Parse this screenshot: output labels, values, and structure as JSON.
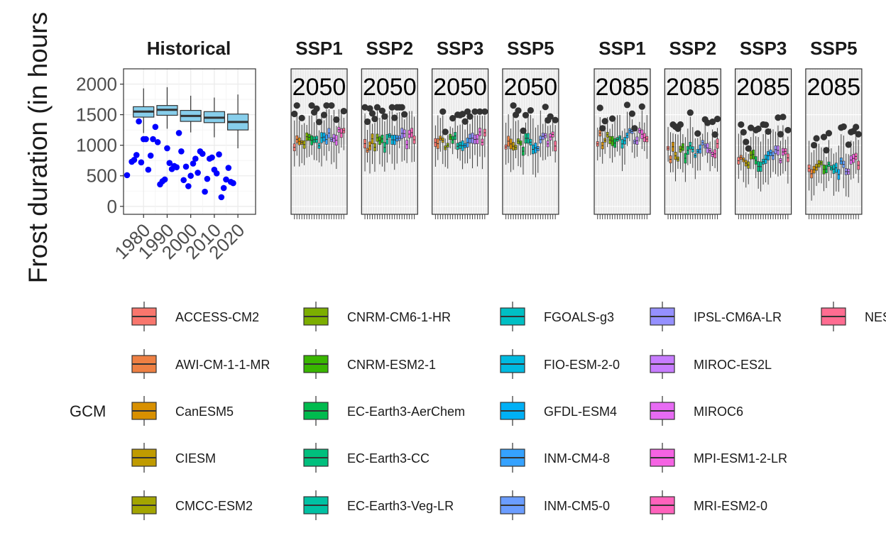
{
  "chart_data": {
    "type": "box",
    "ylabel": "Frost duration (in hours",
    "legend_title": "GCM",
    "legend_placement": "bottom",
    "ylim": [
      -130,
      2250
    ],
    "yticks": [
      0,
      500,
      1000,
      1500,
      2000
    ],
    "historical": {
      "title": "Historical",
      "xticks": [
        "1980",
        "1990",
        "2000",
        "2010",
        "2020"
      ],
      "xlim": [
        1971.5,
        2027.5
      ],
      "box_color": "#87CEEB",
      "point_color": "#0000FF",
      "boxes": [
        {
          "x": 1980,
          "min": 1200,
          "q1": 1460,
          "median": 1550,
          "q3": 1630,
          "max": 1930
        },
        {
          "x": 1990,
          "min": 1270,
          "q1": 1490,
          "median": 1580,
          "q3": 1650,
          "max": 1950
        },
        {
          "x": 2000,
          "min": 1210,
          "q1": 1390,
          "median": 1480,
          "q3": 1570,
          "max": 1810
        },
        {
          "x": 2010,
          "min": 1130,
          "q1": 1370,
          "median": 1450,
          "q3": 1550,
          "max": 1780
        },
        {
          "x": 2020,
          "min": 950,
          "q1": 1250,
          "median": 1380,
          "q3": 1510,
          "max": 1830
        }
      ],
      "points": [
        {
          "x": 1973,
          "y": 510
        },
        {
          "x": 1975,
          "y": 730
        },
        {
          "x": 1976,
          "y": 760
        },
        {
          "x": 1977,
          "y": 840
        },
        {
          "x": 1978,
          "y": 1390
        },
        {
          "x": 1979,
          "y": 720
        },
        {
          "x": 1980,
          "y": 1100
        },
        {
          "x": 1981,
          "y": 1100
        },
        {
          "x": 1982,
          "y": 600
        },
        {
          "x": 1983,
          "y": 830
        },
        {
          "x": 1984,
          "y": 1100
        },
        {
          "x": 1985,
          "y": 1300
        },
        {
          "x": 1986,
          "y": 1050
        },
        {
          "x": 1987,
          "y": 360
        },
        {
          "x": 1988,
          "y": 410
        },
        {
          "x": 1989,
          "y": 440
        },
        {
          "x": 1990,
          "y": 950
        },
        {
          "x": 1991,
          "y": 710
        },
        {
          "x": 1992,
          "y": 610
        },
        {
          "x": 1993,
          "y": 660
        },
        {
          "x": 1994,
          "y": 640
        },
        {
          "x": 1995,
          "y": 1200
        },
        {
          "x": 1996,
          "y": 900
        },
        {
          "x": 1997,
          "y": 430
        },
        {
          "x": 1998,
          "y": 650
        },
        {
          "x": 1999,
          "y": 330
        },
        {
          "x": 2000,
          "y": 500
        },
        {
          "x": 2001,
          "y": 700
        },
        {
          "x": 2002,
          "y": 780
        },
        {
          "x": 2003,
          "y": 550
        },
        {
          "x": 2004,
          "y": 900
        },
        {
          "x": 2005,
          "y": 860
        },
        {
          "x": 2006,
          "y": 240
        },
        {
          "x": 2007,
          "y": 450
        },
        {
          "x": 2008,
          "y": 780
        },
        {
          "x": 2009,
          "y": 800
        },
        {
          "x": 2010,
          "y": 600
        },
        {
          "x": 2011,
          "y": 540
        },
        {
          "x": 2012,
          "y": 850
        },
        {
          "x": 2013,
          "y": 150
        },
        {
          "x": 2014,
          "y": 300
        },
        {
          "x": 2015,
          "y": 440
        },
        {
          "x": 2016,
          "y": 630
        },
        {
          "x": 2017,
          "y": 400
        },
        {
          "x": 2018,
          "y": 380
        }
      ]
    },
    "future_groups": [
      {
        "label": "2050",
        "panels": [
          {
            "title": "SSP1",
            "level": 1100,
            "spread": 160,
            "outlier_max": 1650
          },
          {
            "title": "SSP2",
            "level": 1070,
            "spread": 150,
            "outlier_max": 1620
          },
          {
            "title": "SSP3",
            "level": 1080,
            "spread": 150,
            "outlier_max": 1550
          },
          {
            "title": "SSP5",
            "level": 1020,
            "spread": 170,
            "outlier_max": 1650
          }
        ]
      },
      {
        "label": "2085",
        "panels": [
          {
            "title": "SSP1",
            "level": 1140,
            "spread": 170,
            "outlier_max": 1660
          },
          {
            "title": "SSP2",
            "level": 920,
            "spread": 170,
            "outlier_max": 1620
          },
          {
            "title": "SSP3",
            "level": 780,
            "spread": 190,
            "outlier_max": 1530
          },
          {
            "title": "SSP5",
            "level": 640,
            "spread": 200,
            "outlier_max": 1420
          }
        ]
      }
    ],
    "legend": [
      {
        "name": "ACCESS-CM2",
        "color": "#F8766D"
      },
      {
        "name": "AWI-CM-1-1-MR",
        "color": "#EE8043"
      },
      {
        "name": "CanESM5",
        "color": "#D89000"
      },
      {
        "name": "CIESM",
        "color": "#C09B00"
      },
      {
        "name": "CMCC-ESM2",
        "color": "#A3A500"
      },
      {
        "name": "CNRM-CM6-1-HR",
        "color": "#7CAE00"
      },
      {
        "name": "CNRM-ESM2-1",
        "color": "#39B600"
      },
      {
        "name": "EC-Earth3-AerChem",
        "color": "#00BB4E"
      },
      {
        "name": "EC-Earth3-CC",
        "color": "#00BF7D"
      },
      {
        "name": "EC-Earth3-Veg-LR",
        "color": "#00C1A3"
      },
      {
        "name": "FGOALS-g3",
        "color": "#00BFC4"
      },
      {
        "name": "FIO-ESM-2-0",
        "color": "#00BAE0"
      },
      {
        "name": "GFDL-ESM4",
        "color": "#00B0F6"
      },
      {
        "name": "INM-CM4-8",
        "color": "#35A2FF"
      },
      {
        "name": "INM-CM5-0",
        "color": "#6B9DFF"
      },
      {
        "name": "IPSL-CM6A-LR",
        "color": "#9590FF"
      },
      {
        "name": "MIROC-ES2L",
        "color": "#C77CFF"
      },
      {
        "name": "MIROC6",
        "color": "#E76BF3"
      },
      {
        "name": "MPI-ESM1-2-LR",
        "color": "#F563E3"
      },
      {
        "name": "MRI-ESM2-0",
        "color": "#FF62BC"
      },
      {
        "name": "NES",
        "color": "#FF6C91"
      }
    ]
  }
}
